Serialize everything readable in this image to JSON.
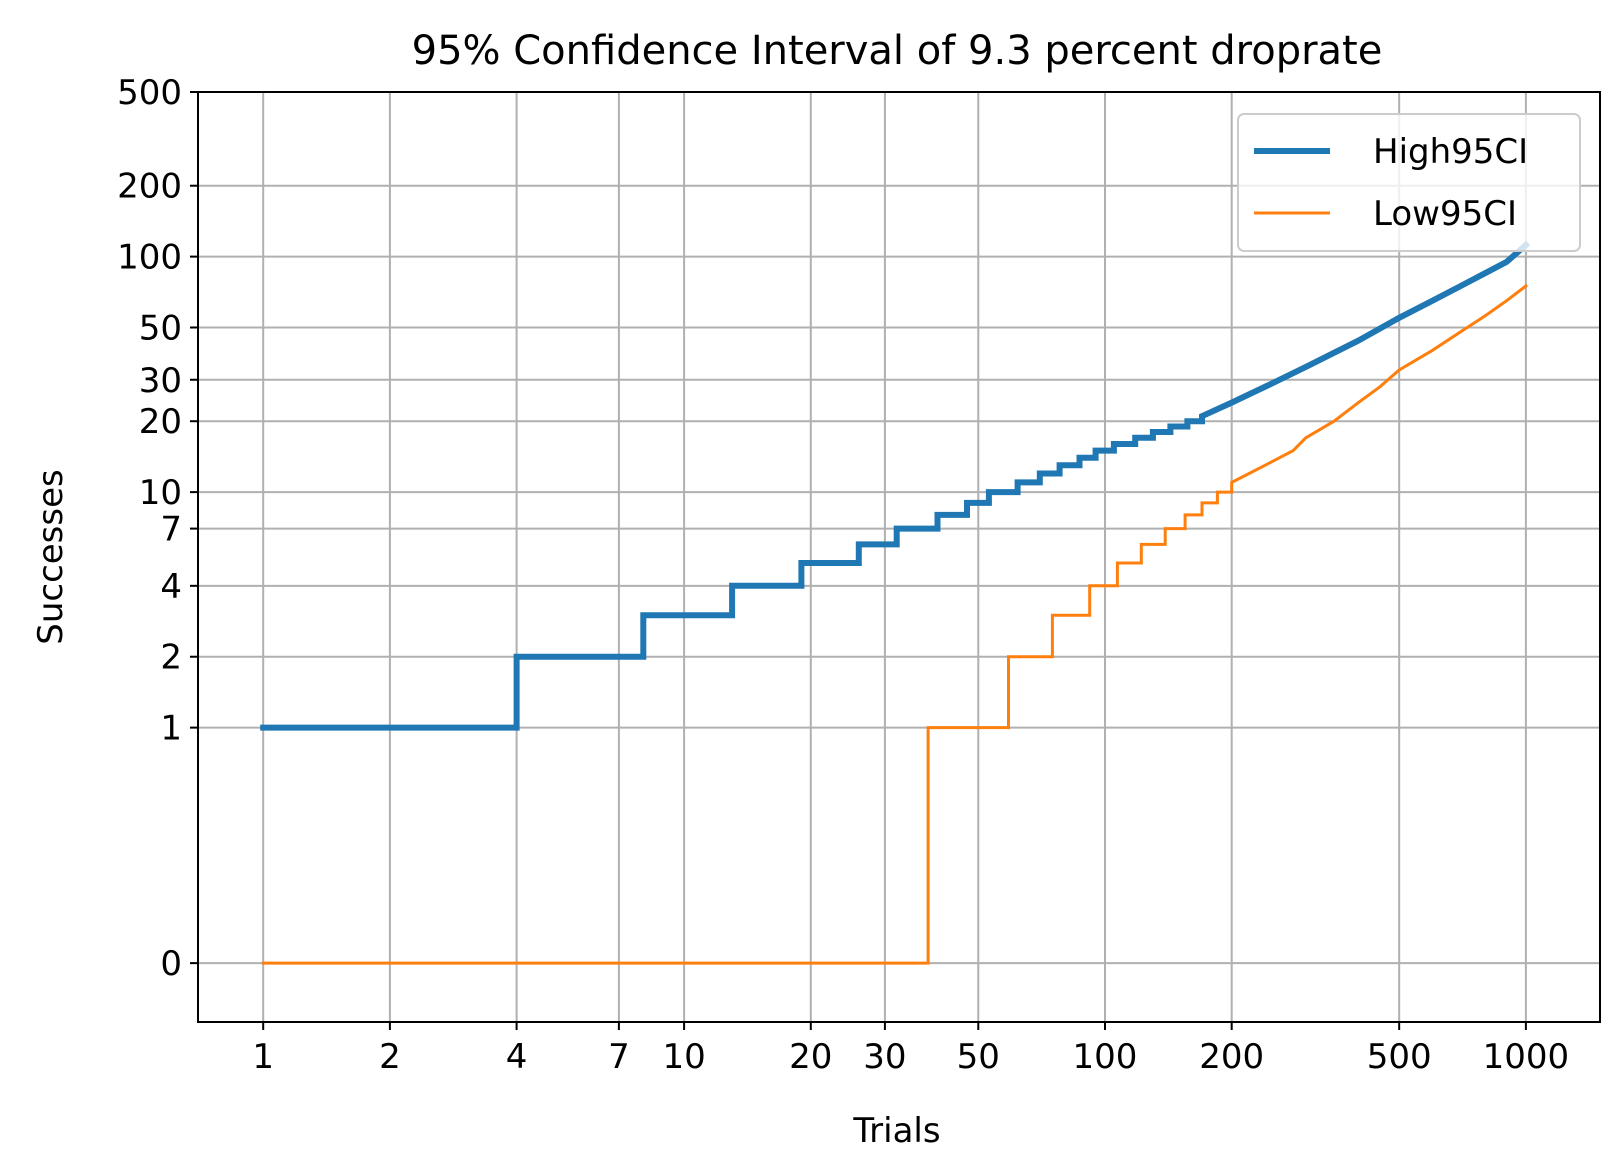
{
  "chart_data": {
    "type": "line",
    "title": "95% Confidence Interval of 9.3 percent droprate",
    "xlabel": "Trials",
    "ylabel": "Successes",
    "x_scale": "log",
    "y_scale": "symlog",
    "xlim": [
      0.7,
      1500
    ],
    "ylim": [
      -0.25,
      500
    ],
    "x_ticks": [
      1,
      2,
      4,
      7,
      10,
      20,
      30,
      50,
      100,
      200,
      500,
      1000
    ],
    "x_tick_labels": [
      "1",
      "2",
      "4",
      "7",
      "10",
      "20",
      "30",
      "50",
      "100",
      "200",
      "500",
      "1000"
    ],
    "y_ticks": [
      0,
      1,
      2,
      4,
      7,
      10,
      20,
      30,
      50,
      100,
      200,
      500
    ],
    "y_tick_labels": [
      "0",
      "1",
      "2",
      "4",
      "7",
      "10",
      "20",
      "30",
      "50",
      "100",
      "200",
      "500"
    ],
    "grid": true,
    "legend_position": "top-right",
    "series": [
      {
        "name": "High95CI",
        "color": "#1f77b4",
        "line_width": "thick",
        "step": true,
        "points": [
          [
            1,
            1
          ],
          [
            4,
            1
          ],
          [
            4,
            2
          ],
          [
            8,
            2
          ],
          [
            8,
            3
          ],
          [
            13,
            3
          ],
          [
            13,
            4
          ],
          [
            19,
            4
          ],
          [
            19,
            5
          ],
          [
            26,
            5
          ],
          [
            26,
            6
          ],
          [
            32,
            6
          ],
          [
            32,
            7
          ],
          [
            40,
            7
          ],
          [
            40,
            8
          ],
          [
            47,
            8
          ],
          [
            47,
            9
          ],
          [
            53,
            9
          ],
          [
            53,
            10
          ],
          [
            62,
            10
          ],
          [
            62,
            11
          ],
          [
            70,
            11
          ],
          [
            70,
            12
          ],
          [
            78,
            12
          ],
          [
            78,
            13
          ],
          [
            87,
            13
          ],
          [
            87,
            14
          ],
          [
            95,
            14
          ],
          [
            95,
            15
          ],
          [
            105,
            15
          ],
          [
            105,
            16
          ],
          [
            118,
            16
          ],
          [
            118,
            17
          ],
          [
            130,
            17
          ],
          [
            130,
            18
          ],
          [
            143,
            18
          ],
          [
            143,
            19
          ],
          [
            157,
            19
          ],
          [
            157,
            20
          ],
          [
            170,
            20
          ],
          [
            170,
            21
          ],
          [
            200,
            24
          ],
          [
            250,
            29
          ],
          [
            300,
            34
          ],
          [
            400,
            44
          ],
          [
            500,
            55
          ],
          [
            600,
            65
          ],
          [
            700,
            75
          ],
          [
            800,
            85
          ],
          [
            900,
            95
          ],
          [
            1000,
            112
          ]
        ]
      },
      {
        "name": "Low95CI",
        "color": "#ff7f0e",
        "line_width": "thin",
        "step": true,
        "points": [
          [
            1,
            0
          ],
          [
            38,
            0
          ],
          [
            38,
            1
          ],
          [
            59,
            1
          ],
          [
            59,
            2
          ],
          [
            75,
            2
          ],
          [
            75,
            3
          ],
          [
            92,
            3
          ],
          [
            92,
            4
          ],
          [
            107,
            4
          ],
          [
            107,
            5
          ],
          [
            122,
            5
          ],
          [
            122,
            6
          ],
          [
            139,
            6
          ],
          [
            139,
            7
          ],
          [
            155,
            7
          ],
          [
            155,
            8
          ],
          [
            170,
            8
          ],
          [
            170,
            9
          ],
          [
            185,
            9
          ],
          [
            185,
            10
          ],
          [
            200,
            10
          ],
          [
            200,
            11
          ],
          [
            220,
            12
          ],
          [
            240,
            13
          ],
          [
            260,
            14
          ],
          [
            280,
            15
          ],
          [
            300,
            17
          ],
          [
            350,
            20
          ],
          [
            400,
            24
          ],
          [
            450,
            28
          ],
          [
            500,
            33
          ],
          [
            600,
            40
          ],
          [
            700,
            48
          ],
          [
            800,
            56
          ],
          [
            900,
            65
          ],
          [
            1000,
            75
          ]
        ]
      }
    ]
  }
}
